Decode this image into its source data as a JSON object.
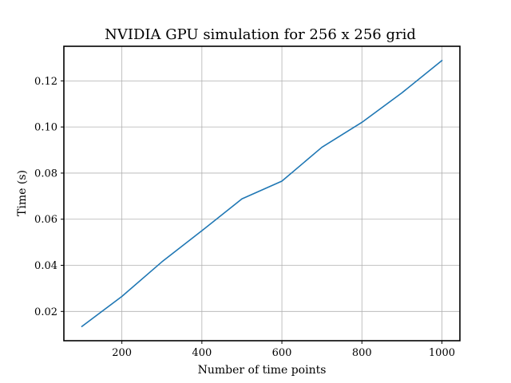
{
  "chart_data": {
    "type": "line",
    "title": "NVIDIA GPU simulation for 256 x 256 grid",
    "xlabel": "Number of time points",
    "ylabel": "Time (s)",
    "x": [
      100,
      200,
      300,
      400,
      500,
      600,
      700,
      800,
      900,
      1000
    ],
    "series": [
      {
        "values": [
          0.0135,
          0.0265,
          0.0415,
          0.055,
          0.0688,
          0.0765,
          0.0912,
          0.102,
          0.1148,
          0.1288
        ],
        "color": "#1f77b4"
      }
    ],
    "xlim": [
      55,
      1045
    ],
    "ylim": [
      0.0073,
      0.135
    ],
    "xticks": [
      200,
      400,
      600,
      800,
      1000
    ],
    "xtick_labels": [
      "200",
      "400",
      "600",
      "800",
      "1000"
    ],
    "yticks": [
      0.02,
      0.04,
      0.06,
      0.08,
      0.1,
      0.12
    ],
    "ytick_labels": [
      "0.02",
      "0.04",
      "0.06",
      "0.08",
      "0.10",
      "0.12"
    ],
    "grid": true,
    "legend": "none"
  }
}
